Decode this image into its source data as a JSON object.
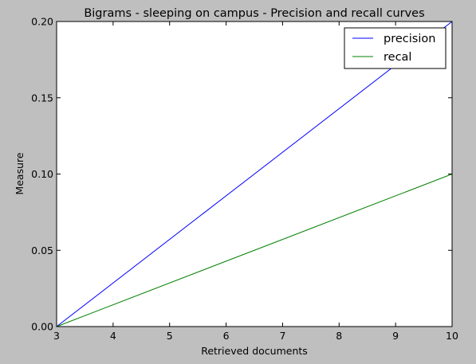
{
  "chart_data": {
    "type": "line",
    "title": "Bigrams - sleeping on campus - Precision and recall curves",
    "xlabel": "Retrieved documents",
    "ylabel": "Measure",
    "xlim": [
      3,
      10
    ],
    "ylim": [
      0,
      0.2
    ],
    "x_ticks": [
      "3",
      "4",
      "5",
      "6",
      "7",
      "8",
      "9",
      "10"
    ],
    "y_ticks": [
      "0.00",
      "0.05",
      "0.10",
      "0.15",
      "0.20"
    ],
    "grid": false,
    "legend_position": "top-right",
    "series": [
      {
        "name": "precision",
        "color": "#0000ff",
        "x": [
          3,
          10
        ],
        "y": [
          0,
          0.2
        ]
      },
      {
        "name": "recal",
        "color": "#008000",
        "x": [
          3,
          10
        ],
        "y": [
          0,
          0.1
        ]
      }
    ]
  }
}
